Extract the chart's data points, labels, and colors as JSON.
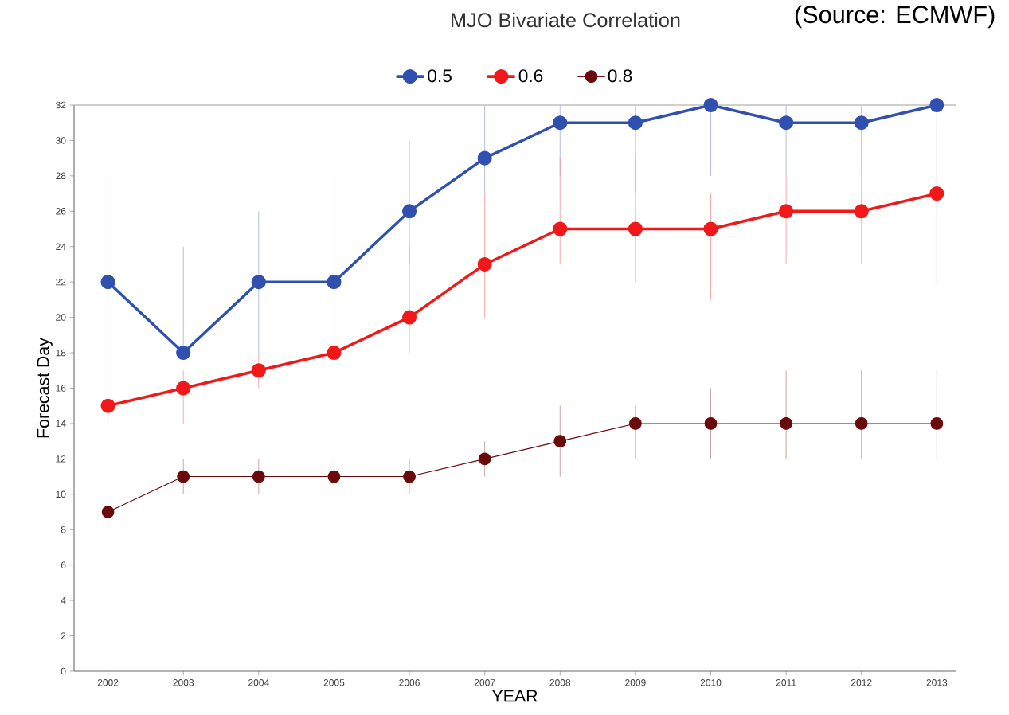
{
  "chart_data": {
    "type": "line",
    "title": "MJO Bivariate Correlation",
    "xlabel": "YEAR",
    "ylabel": "Forecast Day",
    "annotations": [
      "(Source: ECMWF)"
    ],
    "categories": [
      "2002",
      "2003",
      "2004",
      "2005",
      "2006",
      "2007",
      "2008",
      "2009",
      "2010",
      "2011",
      "2012",
      "2013"
    ],
    "series": [
      {
        "name": "0.5",
        "color": "#3050b0",
        "values": [
          22,
          18,
          22,
          22,
          26,
          29,
          31,
          31,
          32,
          31,
          31,
          32
        ],
        "errors": [
          [
            16,
            28
          ],
          [
            18,
            24
          ],
          [
            18,
            26
          ],
          [
            19,
            28
          ],
          [
            23,
            30
          ],
          [
            27,
            32
          ],
          [
            28,
            32
          ],
          [
            27,
            32
          ],
          [
            28,
            32
          ],
          [
            28,
            32
          ],
          [
            28,
            32
          ],
          [
            28,
            32
          ]
        ]
      },
      {
        "name": "0.6",
        "color": "#f01818",
        "values": [
          15,
          16,
          17,
          18,
          20,
          23,
          25,
          25,
          25,
          26,
          26,
          27
        ],
        "errors": [
          [
            14,
            16
          ],
          [
            14,
            17
          ],
          [
            16,
            18
          ],
          [
            17,
            19
          ],
          [
            18,
            24
          ],
          [
            20,
            27
          ],
          [
            23,
            29
          ],
          [
            22,
            29
          ],
          [
            21,
            27
          ],
          [
            23,
            28
          ],
          [
            23,
            28
          ],
          [
            22,
            28
          ]
        ]
      },
      {
        "name": "0.8",
        "color": "#6b0a0a",
        "values": [
          9,
          11,
          11,
          11,
          11,
          12,
          13,
          14,
          14,
          14,
          14,
          14
        ],
        "errors": [
          [
            8,
            10
          ],
          [
            10,
            12
          ],
          [
            10,
            12
          ],
          [
            10,
            12
          ],
          [
            10,
            12
          ],
          [
            11,
            13
          ],
          [
            11,
            15
          ],
          [
            12,
            15
          ],
          [
            12,
            16
          ],
          [
            12,
            17
          ],
          [
            12,
            17
          ],
          [
            12,
            17
          ]
        ]
      }
    ],
    "ylim": [
      0,
      32
    ],
    "yticks": [
      0,
      2,
      4,
      6,
      8,
      10,
      12,
      14,
      16,
      18,
      20,
      22,
      24,
      26,
      28,
      30,
      32
    ],
    "marker": "circle",
    "legend": "top",
    "grid": false
  }
}
